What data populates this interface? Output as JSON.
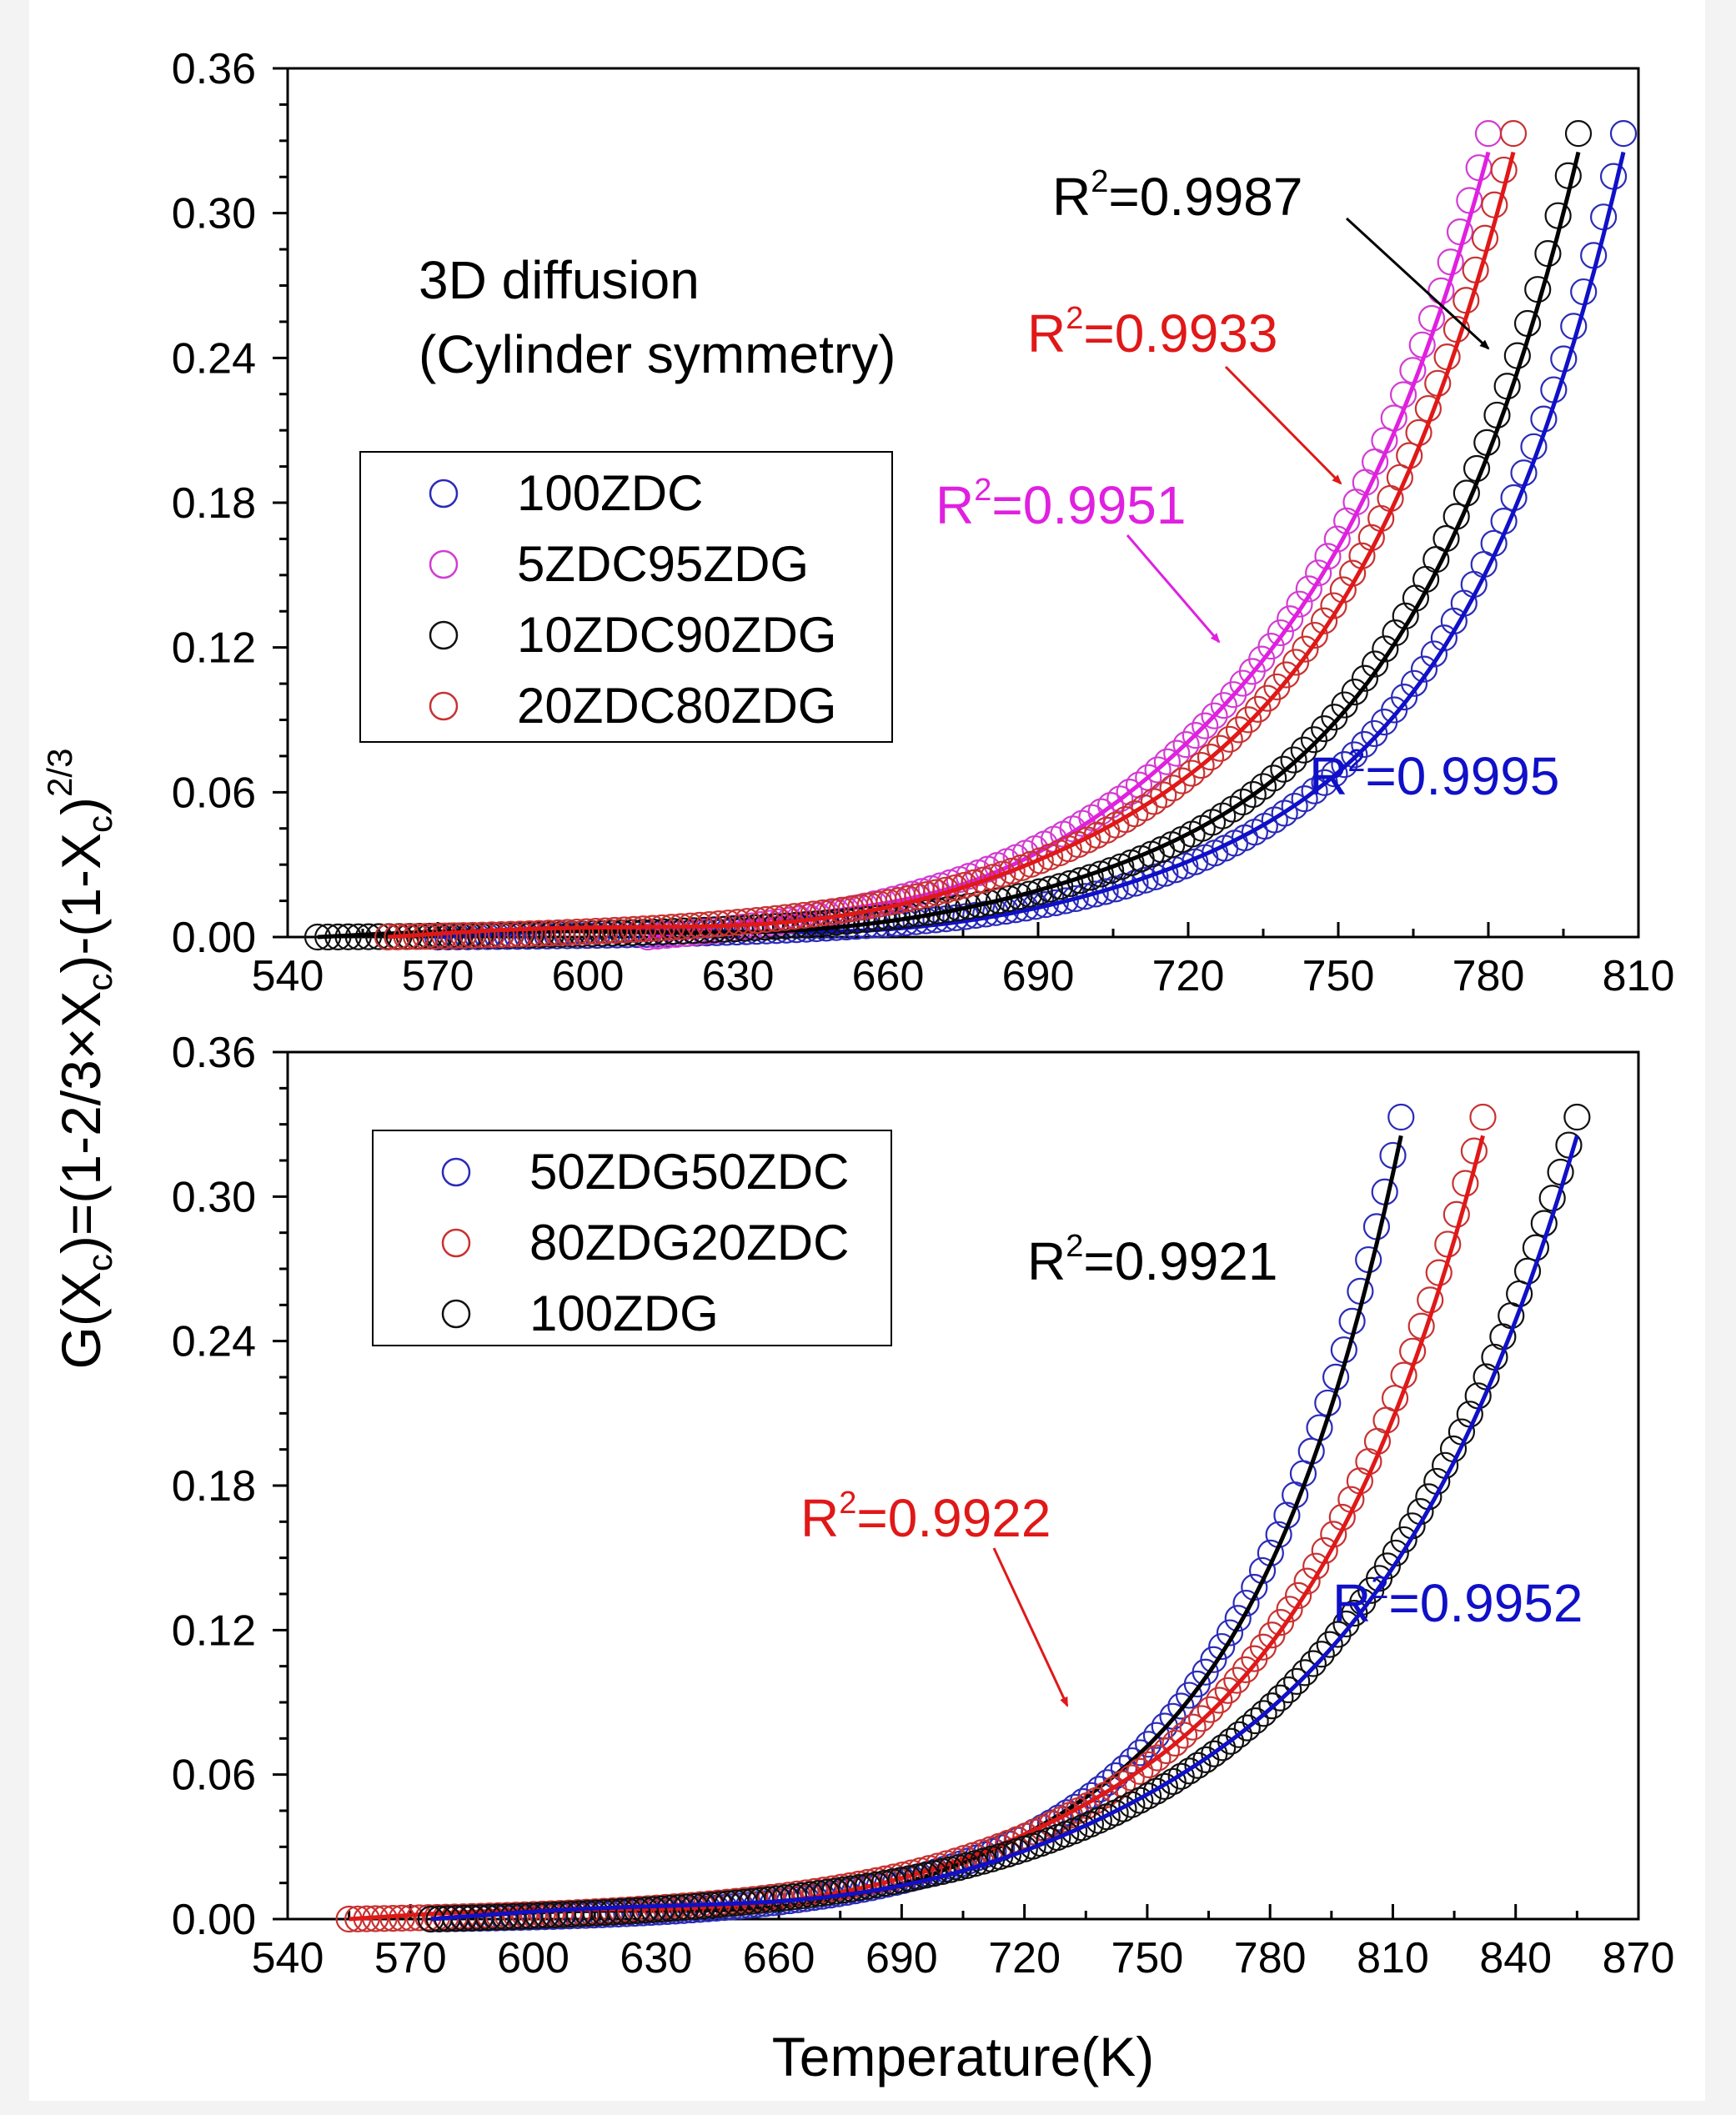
{
  "y_axis_label": {
    "pre": "G(X",
    "sub1": "c",
    "mid": ")=(1-2/3×X",
    "sub2": "c",
    "mid2": ")-(1-X",
    "sub3": "c",
    "post": ")",
    "sup": "2/3"
  },
  "chart_data": [
    {
      "type": "scatter",
      "panel": "top",
      "title": "",
      "annotation_lines": [
        "3D diffusion",
        "(Cylinder symmetry)"
      ],
      "xlabel": "",
      "ylabel": "G(Xc)=(1-2/3×Xc)-(1-Xc)^2/3",
      "xlim": [
        540,
        810
      ],
      "ylim": [
        0,
        0.36
      ],
      "xticks": [
        "540",
        "570",
        "600",
        "630",
        "660",
        "690",
        "720",
        "750",
        "780",
        "810"
      ],
      "yticks": [
        "0.00",
        "0.06",
        "0.12",
        "0.18",
        "0.24",
        "0.30",
        "0.36"
      ],
      "legend_position": "upper-left",
      "series": [
        {
          "name": "100ZDC",
          "color": "#2b2bb8",
          "fit_color": "#1010c8",
          "x_start": 570,
          "x_end": 807,
          "n": 120,
          "k": 0.0275,
          "r2_label": "R",
          "r2_value": "=0.9995"
        },
        {
          "name": "5ZDC95ZDG",
          "color": "#d23cd2",
          "fit_color": "#e020e0",
          "x_start": 612,
          "x_end": 780,
          "n": 90,
          "k": 0.0225,
          "r2_label": "R",
          "r2_value": "=0.9951"
        },
        {
          "name": "10ZDC90ZDG",
          "color": "#111111",
          "fit_color": "#000000",
          "x_start": 546,
          "x_end": 798,
          "n": 125,
          "k": 0.0265,
          "r2_label": "R",
          "r2_value": "=0.9987"
        },
        {
          "name": "20ZDC80ZDG",
          "color": "#c83232",
          "fit_color": "#e01818",
          "x_start": 560,
          "x_end": 785,
          "n": 120,
          "k": 0.0245,
          "r2_label": "R",
          "r2_value": "=0.9933"
        }
      ]
    },
    {
      "type": "scatter",
      "panel": "bottom",
      "title": "",
      "xlabel": "Temperature(K)",
      "ylabel": "",
      "xlim": [
        540,
        870
      ],
      "ylim": [
        0,
        0.36
      ],
      "xticks": [
        "540",
        "570",
        "600",
        "630",
        "660",
        "690",
        "720",
        "750",
        "780",
        "810",
        "840",
        "870"
      ],
      "yticks": [
        "0.00",
        "0.06",
        "0.12",
        "0.18",
        "0.24",
        "0.30",
        "0.36"
      ],
      "legend_position": "upper-left",
      "series": [
        {
          "name": "50ZDG50ZDC",
          "color": "#2b2bb8",
          "fit_color": "#000000",
          "x_start": 575,
          "x_end": 812,
          "n": 120,
          "k": 0.0245,
          "r2_label": "R",
          "r2_value": "=0.9921"
        },
        {
          "name": "80ZDG20ZDC",
          "color": "#c83232",
          "fit_color": "#e01818",
          "x_start": 555,
          "x_end": 832,
          "n": 130,
          "k": 0.02,
          "r2_label": "R",
          "r2_value": "=0.9922"
        },
        {
          "name": "100ZDG",
          "color": "#111111",
          "fit_color": "#1010c8",
          "x_start": 575,
          "x_end": 855,
          "n": 140,
          "k": 0.0175,
          "r2_label": "R",
          "r2_value": "=0.9952"
        }
      ]
    }
  ]
}
